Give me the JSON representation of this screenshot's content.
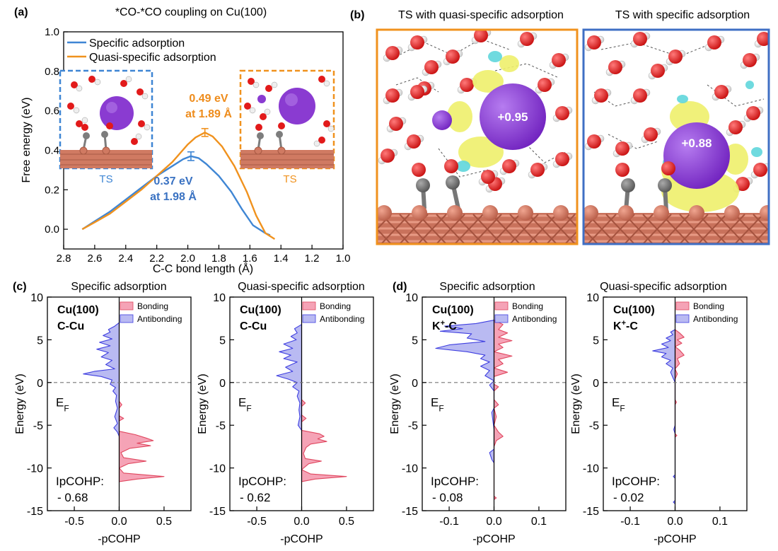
{
  "colors": {
    "specific": "#3f86d4",
    "quasi": "#f0921e",
    "specific_label": "#3a72c2",
    "quasi_label": "#ee8c1c",
    "bonding_fill": "#f5a3b6",
    "bonding_line": "#e0475f",
    "antibonding_fill": "#b9baf2",
    "antibonding_line": "#3f3fe0",
    "purple_atom": "#8a3bd1",
    "copper": "#d07a62",
    "oxygen": "#e21a1a",
    "carbon": "#7d7d7d",
    "isosurface_yellow": "#eef06b",
    "isosurface_cyan": "#5fd6dc"
  },
  "panels": {
    "a": {
      "label": "(a)"
    },
    "b": {
      "label": "(b)",
      "left_title": "TS with quasi-specific adsorption",
      "right_title": "TS with specific adsorption",
      "left_charge": "+0.95",
      "right_charge": "+0.88"
    },
    "c": {
      "label": "(c)"
    },
    "d": {
      "label": "(d)"
    }
  },
  "chart_data": [
    {
      "id": "a",
      "type": "line",
      "title": "*CO-*CO coupling on Cu(100)",
      "xlabel": "C-C bond length (Å)",
      "ylabel": "Free energy (eV)",
      "xlim": [
        2.8,
        1.0
      ],
      "ylim": [
        -0.1,
        1.0
      ],
      "xticks": [
        2.8,
        2.6,
        2.4,
        2.2,
        2.0,
        1.8,
        1.6,
        1.4,
        1.2,
        1.0
      ],
      "yticks": [
        0.0,
        0.2,
        0.4,
        0.6,
        0.8,
        1.0
      ],
      "xtick_labels": [
        "2.8",
        "2.6",
        "2.4",
        "2.2",
        "2.0",
        "1.8",
        "1.6",
        "1.4",
        "1.2",
        "1.0"
      ],
      "ytick_labels": [
        "0.0",
        "0.2",
        "0.4",
        "0.6",
        "0.8",
        "1.0"
      ],
      "legend_position": "top-left",
      "series": [
        {
          "name": "Specific adsorption",
          "color_key": "specific",
          "points": [
            [
              2.68,
              0.0
            ],
            [
              2.6,
              0.04
            ],
            [
              2.5,
              0.09
            ],
            [
              2.4,
              0.15
            ],
            [
              2.3,
              0.21
            ],
            [
              2.2,
              0.27
            ],
            [
              2.1,
              0.32
            ],
            [
              2.03,
              0.355
            ],
            [
              1.98,
              0.37
            ],
            [
              1.93,
              0.36
            ],
            [
              1.88,
              0.33
            ],
            [
              1.8,
              0.27
            ],
            [
              1.72,
              0.19
            ],
            [
              1.65,
              0.1
            ],
            [
              1.58,
              0.02
            ],
            [
              1.5,
              -0.02
            ],
            [
              1.47,
              -0.03
            ]
          ],
          "error_bar": {
            "x": 1.98,
            "y": 0.37,
            "err": 0.022
          }
        },
        {
          "name": "Quasi-specific adsorption",
          "color_key": "quasi",
          "points": [
            [
              2.68,
              0.0
            ],
            [
              2.6,
              0.035
            ],
            [
              2.5,
              0.08
            ],
            [
              2.4,
              0.14
            ],
            [
              2.3,
              0.2
            ],
            [
              2.2,
              0.27
            ],
            [
              2.1,
              0.34
            ],
            [
              2.0,
              0.43
            ],
            [
              1.95,
              0.465
            ],
            [
              1.89,
              0.49
            ],
            [
              1.84,
              0.47
            ],
            [
              1.78,
              0.42
            ],
            [
              1.7,
              0.32
            ],
            [
              1.62,
              0.19
            ],
            [
              1.56,
              0.07
            ],
            [
              1.5,
              -0.02
            ],
            [
              1.44,
              -0.05
            ]
          ],
          "error_bar": {
            "x": 1.89,
            "y": 0.49,
            "err": 0.02
          }
        }
      ],
      "annotations": [
        {
          "text_line1": "0.49 eV",
          "text_line2": "at 1.89 Å",
          "color_key": "quasi_label"
        },
        {
          "text_line1": "0.37 eV",
          "text_line2": "at 1.98 Å",
          "color_key": "specific_label"
        }
      ],
      "insets": [
        {
          "label": "TS",
          "color_key": "specific"
        },
        {
          "label": "TS",
          "color_key": "quasi"
        }
      ]
    },
    {
      "id": "c1",
      "type": "area",
      "title": "Specific adsorption",
      "system": "Cu(100)",
      "bond": "C-Cu",
      "xlabel": "-pCOHP",
      "ylabel": "Energy (eV)",
      "xlim": [
        -0.8,
        0.8
      ],
      "ylim": [
        -15,
        10
      ],
      "xticks": [
        -0.5,
        0.0,
        0.5
      ],
      "xtick_labels": [
        "-0.5",
        "0.0",
        "0.5"
      ],
      "yticks": [
        10,
        5,
        0,
        -5,
        -10,
        -15
      ],
      "ytick_labels": [
        "10",
        "5",
        "0",
        "-5",
        "-10",
        "-15"
      ],
      "fermi_label": "E",
      "fermi_sub": "F",
      "legend": [
        "Bonding",
        "Antibonding"
      ],
      "legend_position": "top-right",
      "ipcohp_label": "IpCOHP:",
      "ipcohp_value": "- 0.68",
      "antibonding": [
        [
          7,
          0
        ],
        [
          6.6,
          -0.05
        ],
        [
          6.2,
          -0.12
        ],
        [
          5.9,
          -0.1
        ],
        [
          5.5,
          -0.18
        ],
        [
          5.1,
          -0.08
        ],
        [
          4.7,
          -0.22
        ],
        [
          4.3,
          -0.1
        ],
        [
          3.9,
          -0.25
        ],
        [
          3.5,
          -0.12
        ],
        [
          3.0,
          -0.2
        ],
        [
          2.6,
          -0.08
        ],
        [
          2.1,
          -0.15
        ],
        [
          1.6,
          -0.05
        ],
        [
          1.3,
          -0.28
        ],
        [
          1.0,
          -0.4
        ],
        [
          0.7,
          -0.2
        ],
        [
          0.3,
          -0.08
        ],
        [
          -0.2,
          -0.1
        ],
        [
          -0.6,
          -0.04
        ],
        [
          -1.0,
          -0.07
        ],
        [
          -1.5,
          -0.03
        ],
        [
          -2.2,
          -0.04
        ],
        [
          -3.0,
          -0.02
        ],
        [
          -4.0,
          -0.05
        ],
        [
          -4.8,
          -0.02
        ],
        [
          -5.3,
          -0.06
        ],
        [
          -5.8,
          -0.02
        ],
        [
          -6.3,
          0
        ]
      ],
      "bonding": [
        [
          -2.2,
          0
        ],
        [
          -2.6,
          0.03
        ],
        [
          -3.0,
          0
        ],
        [
          -3.9,
          0
        ],
        [
          -4.2,
          0.05
        ],
        [
          -4.5,
          0
        ],
        [
          -5.7,
          0
        ],
        [
          -6.1,
          0.18
        ],
        [
          -6.5,
          0.3
        ],
        [
          -6.8,
          0.38
        ],
        [
          -7.1,
          0.2
        ],
        [
          -7.4,
          0.35
        ],
        [
          -7.7,
          0.12
        ],
        [
          -8.2,
          0.02
        ],
        [
          -8.8,
          0.05
        ],
        [
          -9.2,
          0.3
        ],
        [
          -9.5,
          0.1
        ],
        [
          -10.0,
          0
        ],
        [
          -10.6,
          0.05
        ],
        [
          -11.0,
          0.5
        ],
        [
          -11.3,
          0.2
        ],
        [
          -11.6,
          0
        ]
      ]
    },
    {
      "id": "c2",
      "type": "area",
      "title": "Quasi-specific adsorption",
      "system": "Cu(100)",
      "bond": "C-Cu",
      "xlabel": "-pCOHP",
      "ylabel": "Energy (eV)",
      "xlim": [
        -0.8,
        0.8
      ],
      "ylim": [
        -15,
        10
      ],
      "xticks": [
        -0.5,
        0.0,
        0.5
      ],
      "xtick_labels": [
        "-0.5",
        "0.0",
        "0.5"
      ],
      "yticks": [
        10,
        5,
        0,
        -5,
        -10,
        -15
      ],
      "ytick_labels": [
        "10",
        "5",
        "0",
        "-5",
        "-10",
        "-15"
      ],
      "fermi_label": "E",
      "fermi_sub": "F",
      "legend": [
        "Bonding",
        "Antibonding"
      ],
      "legend_position": "top-right",
      "ipcohp_label": "IpCOHP:",
      "ipcohp_value": "- 0.62",
      "antibonding": [
        [
          6.8,
          0
        ],
        [
          6.3,
          -0.08
        ],
        [
          5.8,
          -0.05
        ],
        [
          5.4,
          -0.12
        ],
        [
          5.0,
          -0.06
        ],
        [
          4.5,
          -0.2
        ],
        [
          4.0,
          -0.1
        ],
        [
          3.6,
          -0.25
        ],
        [
          3.2,
          -0.12
        ],
        [
          2.8,
          -0.2
        ],
        [
          2.4,
          -0.05
        ],
        [
          1.8,
          -0.18
        ],
        [
          1.3,
          -0.1
        ],
        [
          0.8,
          -0.28
        ],
        [
          0.4,
          -0.15
        ],
        [
          0.0,
          -0.05
        ],
        [
          -0.5,
          -0.1
        ],
        [
          -1.0,
          -0.03
        ],
        [
          -1.6,
          -0.05
        ],
        [
          -2.4,
          -0.02
        ],
        [
          -3.2,
          -0.03
        ],
        [
          -4.0,
          -0.02
        ],
        [
          -5.0,
          -0.04
        ],
        [
          -5.6,
          0
        ]
      ],
      "bonding": [
        [
          -2.0,
          0
        ],
        [
          -2.4,
          0.04
        ],
        [
          -2.8,
          0
        ],
        [
          -3.8,
          0
        ],
        [
          -4.2,
          0.05
        ],
        [
          -4.6,
          0
        ],
        [
          -5.6,
          0
        ],
        [
          -6.0,
          0.2
        ],
        [
          -6.3,
          0.25
        ],
        [
          -6.6,
          0.18
        ],
        [
          -6.9,
          0.28
        ],
        [
          -7.2,
          0.1
        ],
        [
          -7.6,
          0.05
        ],
        [
          -8.3,
          0.02
        ],
        [
          -8.9,
          0.04
        ],
        [
          -9.2,
          0.22
        ],
        [
          -9.5,
          0.08
        ],
        [
          -10.2,
          0
        ],
        [
          -10.7,
          0.1
        ],
        [
          -11.0,
          0.5
        ],
        [
          -11.3,
          0.15
        ],
        [
          -11.6,
          0
        ]
      ]
    },
    {
      "id": "d1",
      "type": "area",
      "title": "Specific adsorption",
      "system": "Cu(100)",
      "bond_main": "K",
      "bond_sup": "+",
      "bond_rest": "-C",
      "xlabel": "-pCOHP",
      "ylabel": "Energy (eV)",
      "xlim": [
        -0.16,
        0.16
      ],
      "ylim": [
        -15,
        10
      ],
      "xticks": [
        -0.1,
        0.0,
        0.1
      ],
      "xtick_labels": [
        "-0.1",
        "0.0",
        "0.1"
      ],
      "yticks": [
        10,
        5,
        0,
        -5,
        -10,
        -15
      ],
      "ytick_labels": [
        "10",
        "5",
        "0",
        "-5",
        "-10",
        "-15"
      ],
      "fermi_label": "E",
      "fermi_sub": "F",
      "legend": [
        "Bonding",
        "Antibonding"
      ],
      "legend_position": "top-right",
      "ipcohp_label": "IpCOHP:",
      "ipcohp_value": "- 0.08",
      "antibonding": [
        [
          7.3,
          0
        ],
        [
          6.9,
          -0.04
        ],
        [
          6.6,
          -0.11
        ],
        [
          6.3,
          -0.07
        ],
        [
          6.0,
          -0.12
        ],
        [
          5.7,
          -0.05
        ],
        [
          5.2,
          -0.06
        ],
        [
          4.8,
          -0.02
        ],
        [
          4.4,
          -0.1
        ],
        [
          4.0,
          -0.13
        ],
        [
          3.6,
          -0.06
        ],
        [
          3.2,
          -0.02
        ],
        [
          2.8,
          -0.03
        ],
        [
          2.4,
          -0.01
        ],
        [
          1.9,
          -0.03
        ],
        [
          1.4,
          -0.01
        ],
        [
          0.8,
          -0.02
        ],
        [
          0.2,
          0
        ],
        [
          -0.3,
          -0.01
        ],
        [
          -1.0,
          0
        ],
        [
          -3.0,
          0
        ],
        [
          -3.5,
          -0.005
        ],
        [
          -5.5,
          0
        ],
        [
          -7.8,
          0
        ],
        [
          -8.2,
          -0.01
        ],
        [
          -9.0,
          -0.005
        ],
        [
          -9.4,
          0
        ]
      ],
      "bonding": [
        [
          7.3,
          0
        ],
        [
          6.8,
          0.02
        ],
        [
          6.2,
          0.01
        ],
        [
          5.8,
          0.03
        ],
        [
          5.3,
          0.01
        ],
        [
          4.9,
          0.04
        ],
        [
          4.5,
          0.01
        ],
        [
          4.1,
          0.02
        ],
        [
          3.6,
          0
        ],
        [
          3.1,
          0.04
        ],
        [
          2.7,
          0.01
        ],
        [
          2.2,
          0.02
        ],
        [
          1.7,
          0
        ],
        [
          1.2,
          0.03
        ],
        [
          0.7,
          0
        ],
        [
          -0.2,
          0
        ],
        [
          -0.5,
          0.01
        ],
        [
          -1.0,
          0
        ],
        [
          -2.0,
          0
        ],
        [
          -2.6,
          0.01
        ],
        [
          -3.0,
          0
        ],
        [
          -4.0,
          0.005
        ],
        [
          -5.0,
          0
        ],
        [
          -5.8,
          0.01
        ],
        [
          -6.3,
          0.02
        ],
        [
          -6.8,
          0.005
        ],
        [
          -7.5,
          0
        ],
        [
          -13.3,
          0
        ],
        [
          -13.5,
          0.005
        ],
        [
          -13.7,
          0
        ]
      ]
    },
    {
      "id": "d2",
      "type": "area",
      "title": "Quasi-specific adsorption",
      "system": "Cu(100)",
      "bond_main": "K",
      "bond_sup": "+",
      "bond_rest": "-C",
      "xlabel": "-pCOHP",
      "ylabel": "Energy (eV)",
      "xlim": [
        -0.16,
        0.16
      ],
      "ylim": [
        -15,
        10
      ],
      "xticks": [
        -0.1,
        0.0,
        0.1
      ],
      "xtick_labels": [
        "-0.1",
        "0.0",
        "0.1"
      ],
      "yticks": [
        10,
        5,
        0,
        -5,
        -10,
        -15
      ],
      "ytick_labels": [
        "10",
        "5",
        "0",
        "-5",
        "-10",
        "-15"
      ],
      "fermi_label": "E",
      "fermi_sub": "F",
      "legend": [
        "Bonding",
        "Antibonding"
      ],
      "legend_position": "top-right",
      "ipcohp_label": "IpCOHP:",
      "ipcohp_value": "- 0.02",
      "antibonding": [
        [
          6.2,
          0
        ],
        [
          5.9,
          -0.01
        ],
        [
          5.6,
          -0.005
        ],
        [
          5.2,
          -0.02
        ],
        [
          4.9,
          -0.01
        ],
        [
          4.5,
          -0.03
        ],
        [
          4.1,
          -0.015
        ],
        [
          3.7,
          -0.05
        ],
        [
          3.4,
          -0.02
        ],
        [
          3.0,
          -0.03
        ],
        [
          2.6,
          -0.01
        ],
        [
          2.2,
          -0.02
        ],
        [
          1.7,
          -0.005
        ],
        [
          1.2,
          -0.01
        ],
        [
          0.6,
          -0.005
        ],
        [
          0.0,
          0
        ],
        [
          -1.0,
          0
        ],
        [
          -5.0,
          0
        ],
        [
          -5.5,
          -0.003
        ],
        [
          -6.0,
          0
        ],
        [
          -10.8,
          0
        ],
        [
          -11.0,
          -0.004
        ],
        [
          -11.2,
          0
        ],
        [
          -13.8,
          0
        ],
        [
          -14.0,
          -0.004
        ],
        [
          -14.2,
          0
        ]
      ],
      "bonding": [
        [
          6.2,
          0
        ],
        [
          5.8,
          0.01
        ],
        [
          5.3,
          0.02
        ],
        [
          5.0,
          0.005
        ],
        [
          4.6,
          0.015
        ],
        [
          4.2,
          0
        ],
        [
          3.8,
          0.01
        ],
        [
          3.2,
          0.02
        ],
        [
          2.8,
          0.005
        ],
        [
          2.2,
          0.01
        ],
        [
          1.6,
          0
        ],
        [
          1.0,
          0.005
        ],
        [
          0.4,
          0
        ],
        [
          -2.0,
          0
        ],
        [
          -2.3,
          0.003
        ],
        [
          -2.6,
          0
        ],
        [
          -6.0,
          0
        ],
        [
          -6.2,
          0.004
        ],
        [
          -6.4,
          0
        ]
      ]
    }
  ]
}
